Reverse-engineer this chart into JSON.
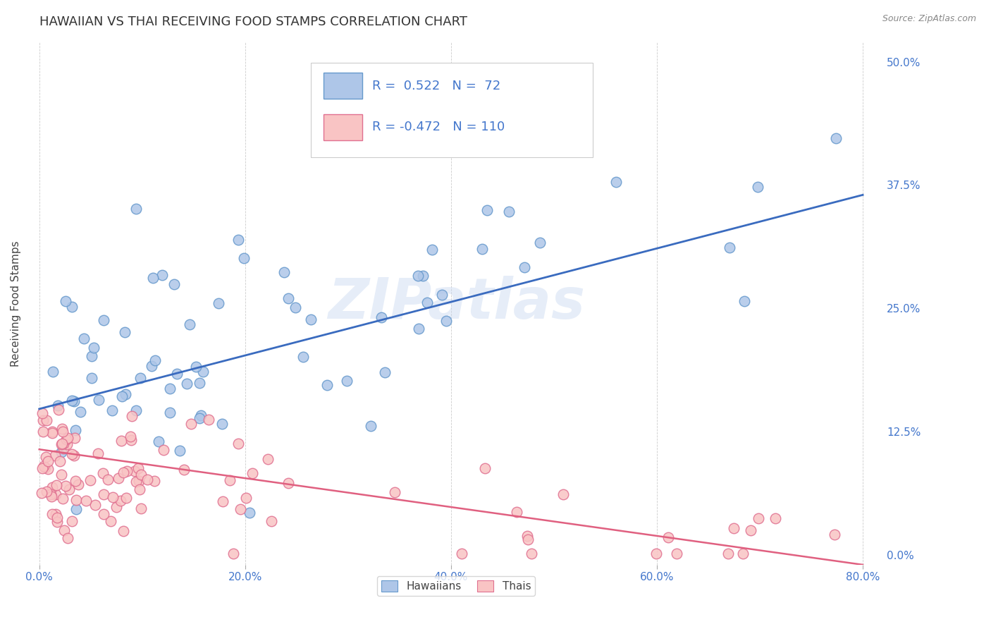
{
  "title": "HAWAIIAN VS THAI RECEIVING FOOD STAMPS CORRELATION CHART",
  "source": "Source: ZipAtlas.com",
  "ylabel": "Receiving Food Stamps",
  "xlabel_ticks": [
    "0.0%",
    "20.0%",
    "40.0%",
    "60.0%",
    "80.0%"
  ],
  "xlabel_vals": [
    0.0,
    0.2,
    0.4,
    0.6,
    0.8
  ],
  "ylabel_ticks": [
    "0.0%",
    "12.5%",
    "25.0%",
    "37.5%",
    "50.0%"
  ],
  "ylabel_vals": [
    0.0,
    0.125,
    0.25,
    0.375,
    0.5
  ],
  "xlim": [
    -0.01,
    0.82
  ],
  "ylim": [
    -0.01,
    0.52
  ],
  "watermark": "ZIPatlas",
  "legend_hawaiians_R": "0.522",
  "legend_hawaiians_N": "72",
  "legend_thais_R": "-0.472",
  "legend_thais_N": "110",
  "hawaiian_color": "#aec6e8",
  "hawaiian_edge": "#6699cc",
  "thai_color": "#f9c4c4",
  "thai_edge": "#e07090",
  "trendline_hawaiian_color": "#3a6bbf",
  "trendline_thai_color": "#e06080",
  "background_color": "#ffffff",
  "tick_color": "#4477cc",
  "title_fontsize": 13,
  "label_fontsize": 11,
  "tick_fontsize": 11,
  "legend_fontsize": 13
}
